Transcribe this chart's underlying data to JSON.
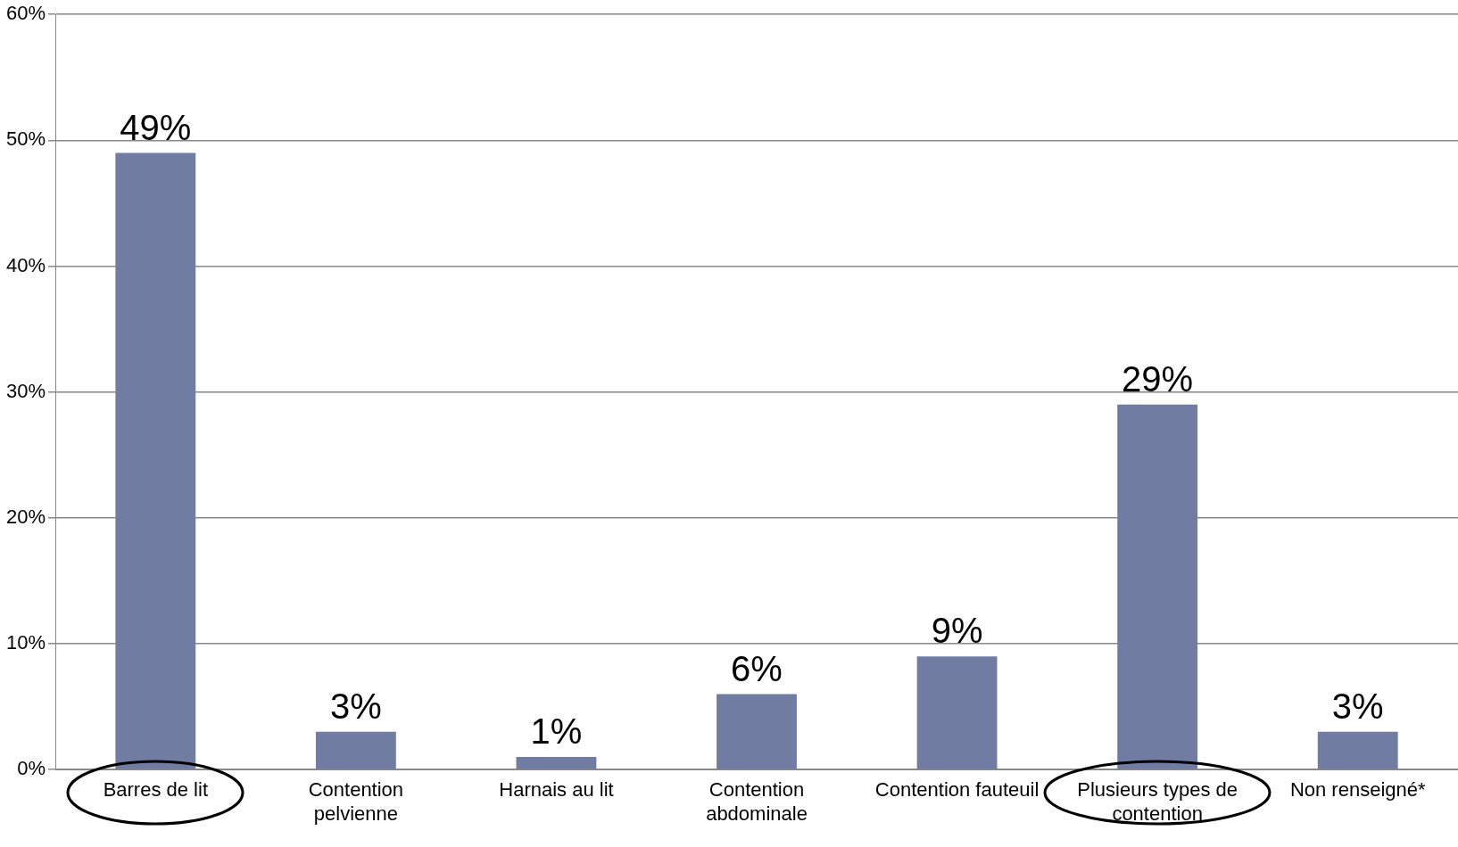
{
  "chart_data": {
    "type": "bar",
    "categories": [
      "Barres de lit",
      "Contention pelvienne",
      "Harnais au lit",
      "Contention abdominale",
      "Contention fauteuil",
      "Plusieurs types de contention",
      "Non renseigné*"
    ],
    "values": [
      49,
      3,
      1,
      6,
      9,
      29,
      3
    ],
    "color": "#717ca3",
    "value_labels": [
      "49%",
      "3%",
      "1%",
      "6%",
      "9%",
      "29%",
      "3%"
    ],
    "ylim": [
      0,
      60
    ],
    "yticks": [
      {
        "value": 0,
        "label": "0%"
      },
      {
        "value": 10,
        "label": "10%"
      },
      {
        "value": 20,
        "label": "20%"
      },
      {
        "value": 30,
        "label": "30%"
      },
      {
        "value": 40,
        "label": "40%"
      },
      {
        "value": 50,
        "label": "50%"
      },
      {
        "value": 60,
        "label": "60%"
      }
    ],
    "grid": "y",
    "legend": false
  }
}
